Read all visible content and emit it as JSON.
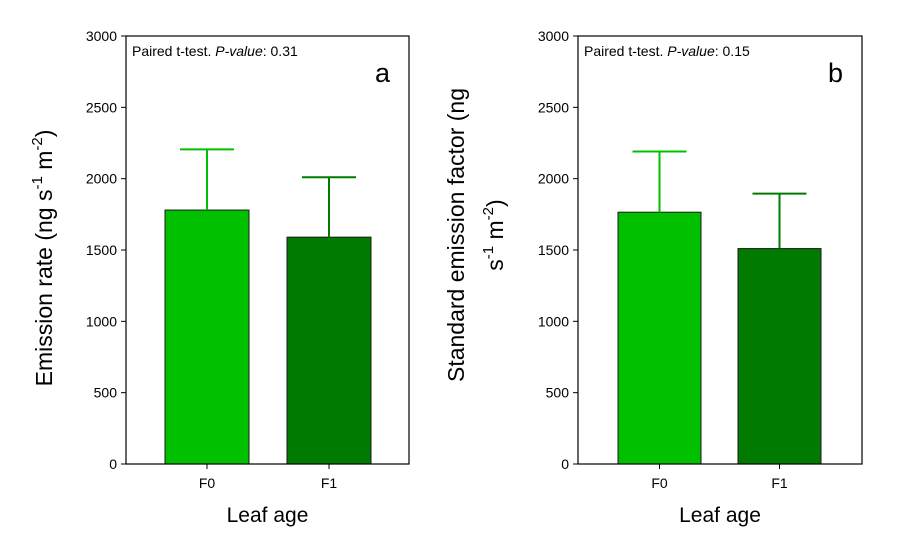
{
  "chart_data": [
    {
      "type": "bar",
      "panel_label": "a",
      "annotation": {
        "prefix": "Paired t-test. ",
        "italic": "P-value",
        "suffix": ": 0.31"
      },
      "categories": [
        "F0",
        "F1"
      ],
      "values": [
        1780,
        1590
      ],
      "error_upper": [
        2205,
        2010
      ],
      "colors": [
        "#00c000",
        "#007a00"
      ],
      "xlabel": "Leaf age",
      "ylabel": "Emission rate (ng s^-1 m^-2)",
      "ylabel_parts": {
        "base": "Emission rate (ng s",
        "sup1": "-1",
        "mid": " m",
        "sup2": "-2",
        "end": ")"
      },
      "ylim": [
        0,
        3000
      ],
      "yticks": [
        0,
        500,
        1000,
        1500,
        2000,
        2500,
        3000
      ],
      "grid": false,
      "legend": "none"
    },
    {
      "type": "bar",
      "panel_label": "b",
      "annotation": {
        "prefix": "Paired t-test. ",
        "italic": "P-value",
        "suffix": ": 0.15"
      },
      "categories": [
        "F0",
        "F1"
      ],
      "values": [
        1765,
        1510
      ],
      "error_upper": [
        2190,
        1895
      ],
      "colors": [
        "#00c000",
        "#007a00"
      ],
      "xlabel": "Leaf age",
      "ylabel": "Standard emission factor (ng s^-1 m^-2)",
      "ylabel_parts": {
        "line1": "Standard emission factor (ng",
        "sup1": "-1",
        "mid": " m",
        "sup2": "-2",
        "end": ")"
      },
      "ylim": [
        0,
        3000
      ],
      "yticks": [
        0,
        500,
        1000,
        1500,
        2000,
        2500,
        3000
      ],
      "grid": false,
      "legend": "none"
    }
  ]
}
